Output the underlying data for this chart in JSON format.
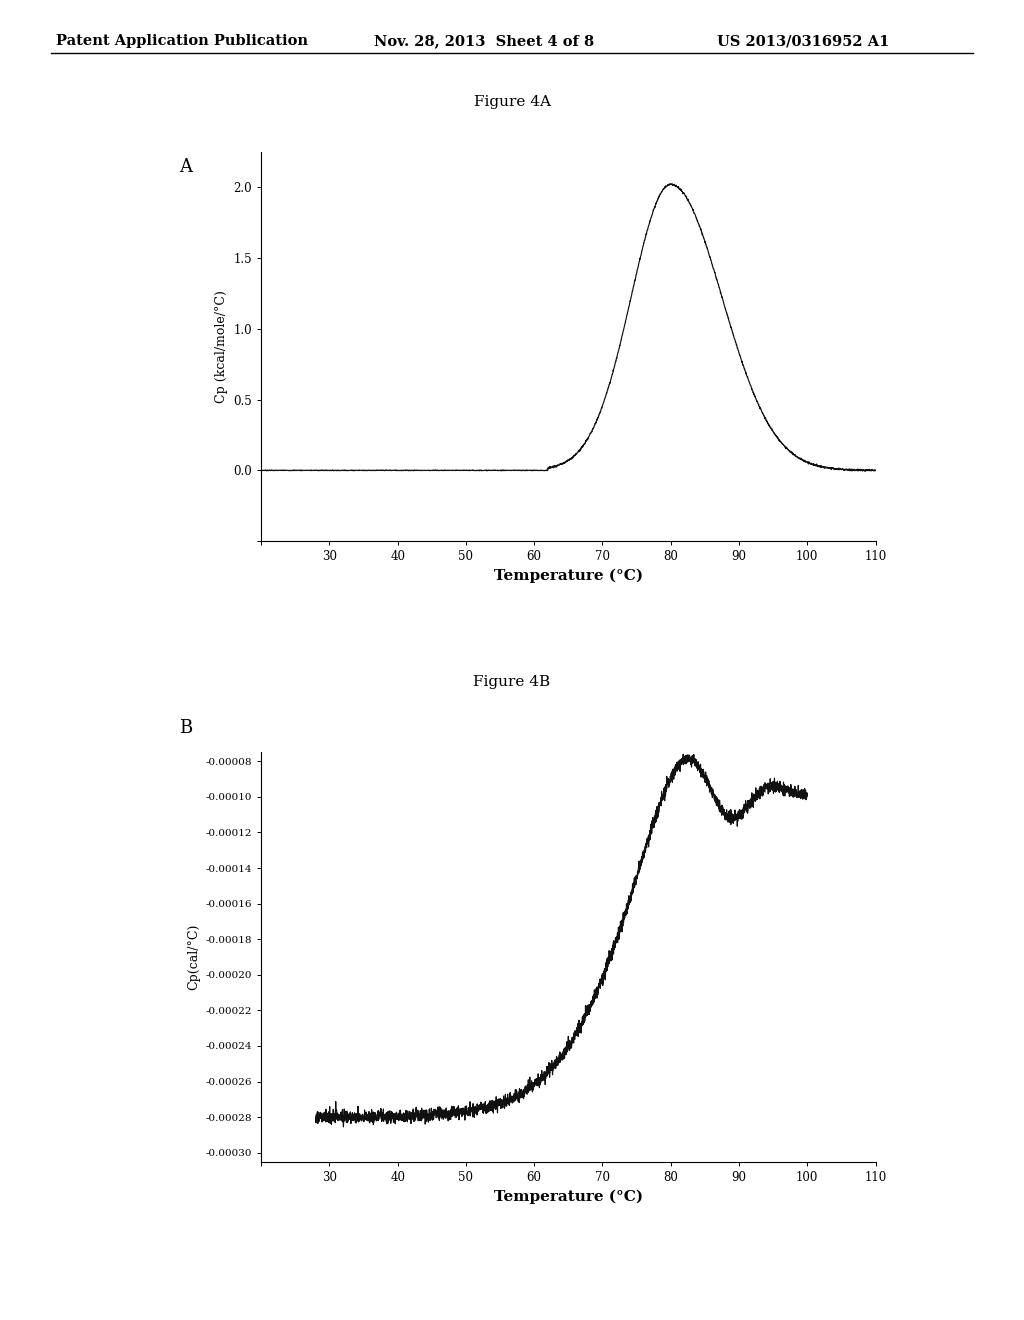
{
  "header_left": "Patent Application Publication",
  "header_mid": "Nov. 28, 2013  Sheet 4 of 8",
  "header_right": "US 2013/0316952 A1",
  "fig4A_title": "Figure 4A",
  "fig4B_title": "Figure 4B",
  "panel_A_label": "A",
  "panel_B_label": "B",
  "plotA_xlabel": "Temperature (°C)",
  "plotA_ylabel": "Cp (kcal/mole/°C)",
  "plotA_xlim": [
    20,
    110
  ],
  "plotA_ylim": [
    -0.5,
    2.25
  ],
  "plotA_xticks": [
    20,
    30,
    40,
    50,
    60,
    70,
    80,
    90,
    100,
    110
  ],
  "plotA_yticks": [
    -0.5,
    0.0,
    0.5,
    1.0,
    1.5,
    2.0
  ],
  "plotB_xlabel": "Temperature (°C)",
  "plotB_ylabel": "Cp(cal/°C)",
  "plotB_xlim": [
    20,
    110
  ],
  "plotB_ylim": [
    -0.000305,
    -7.5e-05
  ],
  "plotB_xticks": [
    20,
    30,
    40,
    50,
    60,
    70,
    80,
    90,
    100,
    110
  ],
  "plotB_yticks": [
    -0.0003,
    -0.00028,
    -0.00026,
    -0.00024,
    -0.00022,
    -0.0002,
    -0.00018,
    -0.00016,
    -0.00014,
    -0.00012,
    -0.0001,
    -8e-05
  ],
  "background_color": "#ffffff",
  "line_color": "#111111"
}
